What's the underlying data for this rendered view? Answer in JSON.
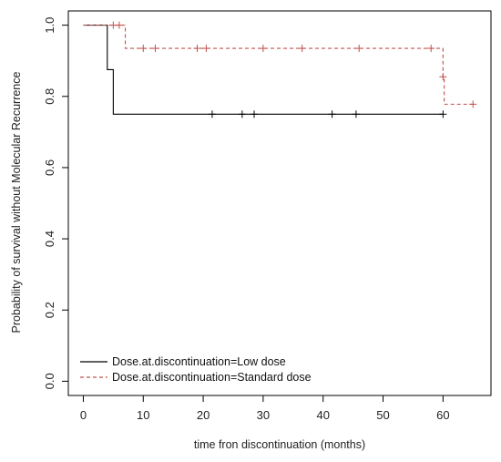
{
  "chart_data": {
    "type": "line",
    "subtype": "kaplan-meier-step",
    "title": "",
    "xlabel": "time fron discontinuation (months)",
    "ylabel": "Probability of survival without Molecular Recurrence",
    "xlim": [
      -2.5,
      68
    ],
    "ylim": [
      -0.04,
      1.04
    ],
    "x_ticks": [
      0,
      10,
      20,
      30,
      40,
      50,
      60
    ],
    "y_ticks": [
      0.0,
      0.2,
      0.4,
      0.6,
      0.8,
      1.0
    ],
    "y_tick_labels": [
      "0.0",
      "0.2",
      "0.4",
      "0.6",
      "0.8",
      "1.0"
    ],
    "grid": false,
    "legend_position": "bottom-left",
    "series": [
      {
        "name": "Dose.at.discontinuation=Low dose",
        "color": "#000000",
        "dash": "solid",
        "steps": [
          [
            0,
            1.0
          ],
          [
            4,
            0.875
          ],
          [
            5,
            0.75
          ],
          [
            60,
            0.75
          ]
        ],
        "censored": [
          [
            21.5,
            0.75
          ],
          [
            26.5,
            0.75
          ],
          [
            28.5,
            0.75
          ],
          [
            41.5,
            0.75
          ],
          [
            45.5,
            0.75
          ],
          [
            60,
            0.75
          ]
        ]
      },
      {
        "name": "Dose.at.discontinuation=Standard dose",
        "color": "#c0504d",
        "dash": "dashed",
        "steps": [
          [
            0,
            1.0
          ],
          [
            7,
            0.935
          ],
          [
            60,
            0.855
          ],
          [
            60.2,
            0.778
          ],
          [
            65,
            0.778
          ]
        ],
        "censored": [
          [
            5,
            1.0
          ],
          [
            6,
            1.0
          ],
          [
            10,
            0.935
          ],
          [
            12,
            0.935
          ],
          [
            19,
            0.935
          ],
          [
            20.5,
            0.935
          ],
          [
            30,
            0.935
          ],
          [
            36.5,
            0.935
          ],
          [
            46,
            0.935
          ],
          [
            58,
            0.935
          ],
          [
            60,
            0.855
          ],
          [
            65,
            0.778
          ]
        ]
      }
    ]
  }
}
